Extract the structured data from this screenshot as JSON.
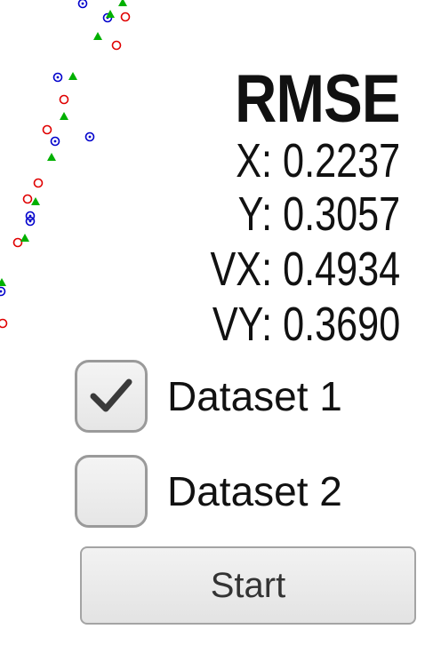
{
  "colors": {
    "series_red": "#e00000",
    "series_blue": "#0000cc",
    "series_green": "#00b000"
  },
  "chart_data": {
    "type": "scatter",
    "title": "",
    "xlabel": "",
    "ylabel": "",
    "xlim": [
      0,
      240
    ],
    "ylim": [
      0,
      400
    ],
    "series": [
      {
        "marker": "circle-open",
        "color": "#e00000",
        "points": [
          [
            141,
            19
          ],
          [
            131,
            51
          ],
          [
            72,
            112
          ],
          [
            53,
            146
          ],
          [
            43,
            206
          ],
          [
            31,
            224
          ],
          [
            20,
            273
          ],
          [
            3,
            364
          ]
        ]
      },
      {
        "marker": "circle-dot",
        "color": "#0000cc",
        "points": [
          [
            93,
            4
          ],
          [
            121,
            20
          ],
          [
            65,
            87
          ],
          [
            101,
            154
          ],
          [
            62,
            159
          ],
          [
            34,
            243
          ],
          [
            34,
            249
          ],
          [
            1,
            328
          ]
        ]
      },
      {
        "marker": "triangle",
        "color": "#00b000",
        "points": [
          [
            138,
            3
          ],
          [
            124,
            16
          ],
          [
            110,
            41
          ],
          [
            82,
            86
          ],
          [
            72,
            131
          ],
          [
            58,
            177
          ],
          [
            40,
            227
          ],
          [
            28,
            268
          ],
          [
            2,
            318
          ]
        ]
      }
    ]
  },
  "rmse": {
    "title": "RMSE",
    "x": "X: 0.2237",
    "y": "Y: 0.3057",
    "vx": "VX: 0.4934",
    "vy": "VY: 0.3690"
  },
  "datasets": [
    {
      "label": "Dataset 1",
      "checked": true
    },
    {
      "label": "Dataset 2",
      "checked": false
    }
  ],
  "start_button": {
    "label": "Start"
  }
}
